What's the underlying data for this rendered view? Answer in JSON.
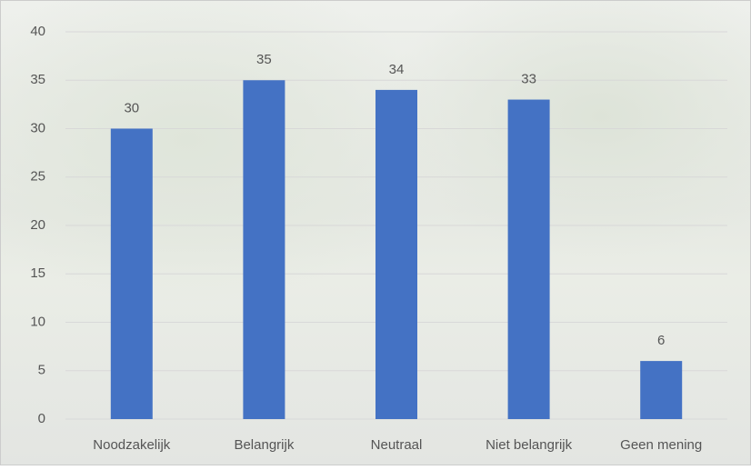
{
  "chart_data": {
    "type": "bar",
    "categories": [
      "Noodzakelijk",
      "Belangrijk",
      "Neutraal",
      "Niet belangrijk",
      "Geen mening"
    ],
    "values": [
      30,
      35,
      34,
      33,
      6
    ],
    "color": "#4472c4",
    "ylim": [
      0,
      40
    ],
    "yticks": [
      0,
      5,
      10,
      15,
      20,
      25,
      30,
      35,
      40
    ],
    "grid": true
  }
}
